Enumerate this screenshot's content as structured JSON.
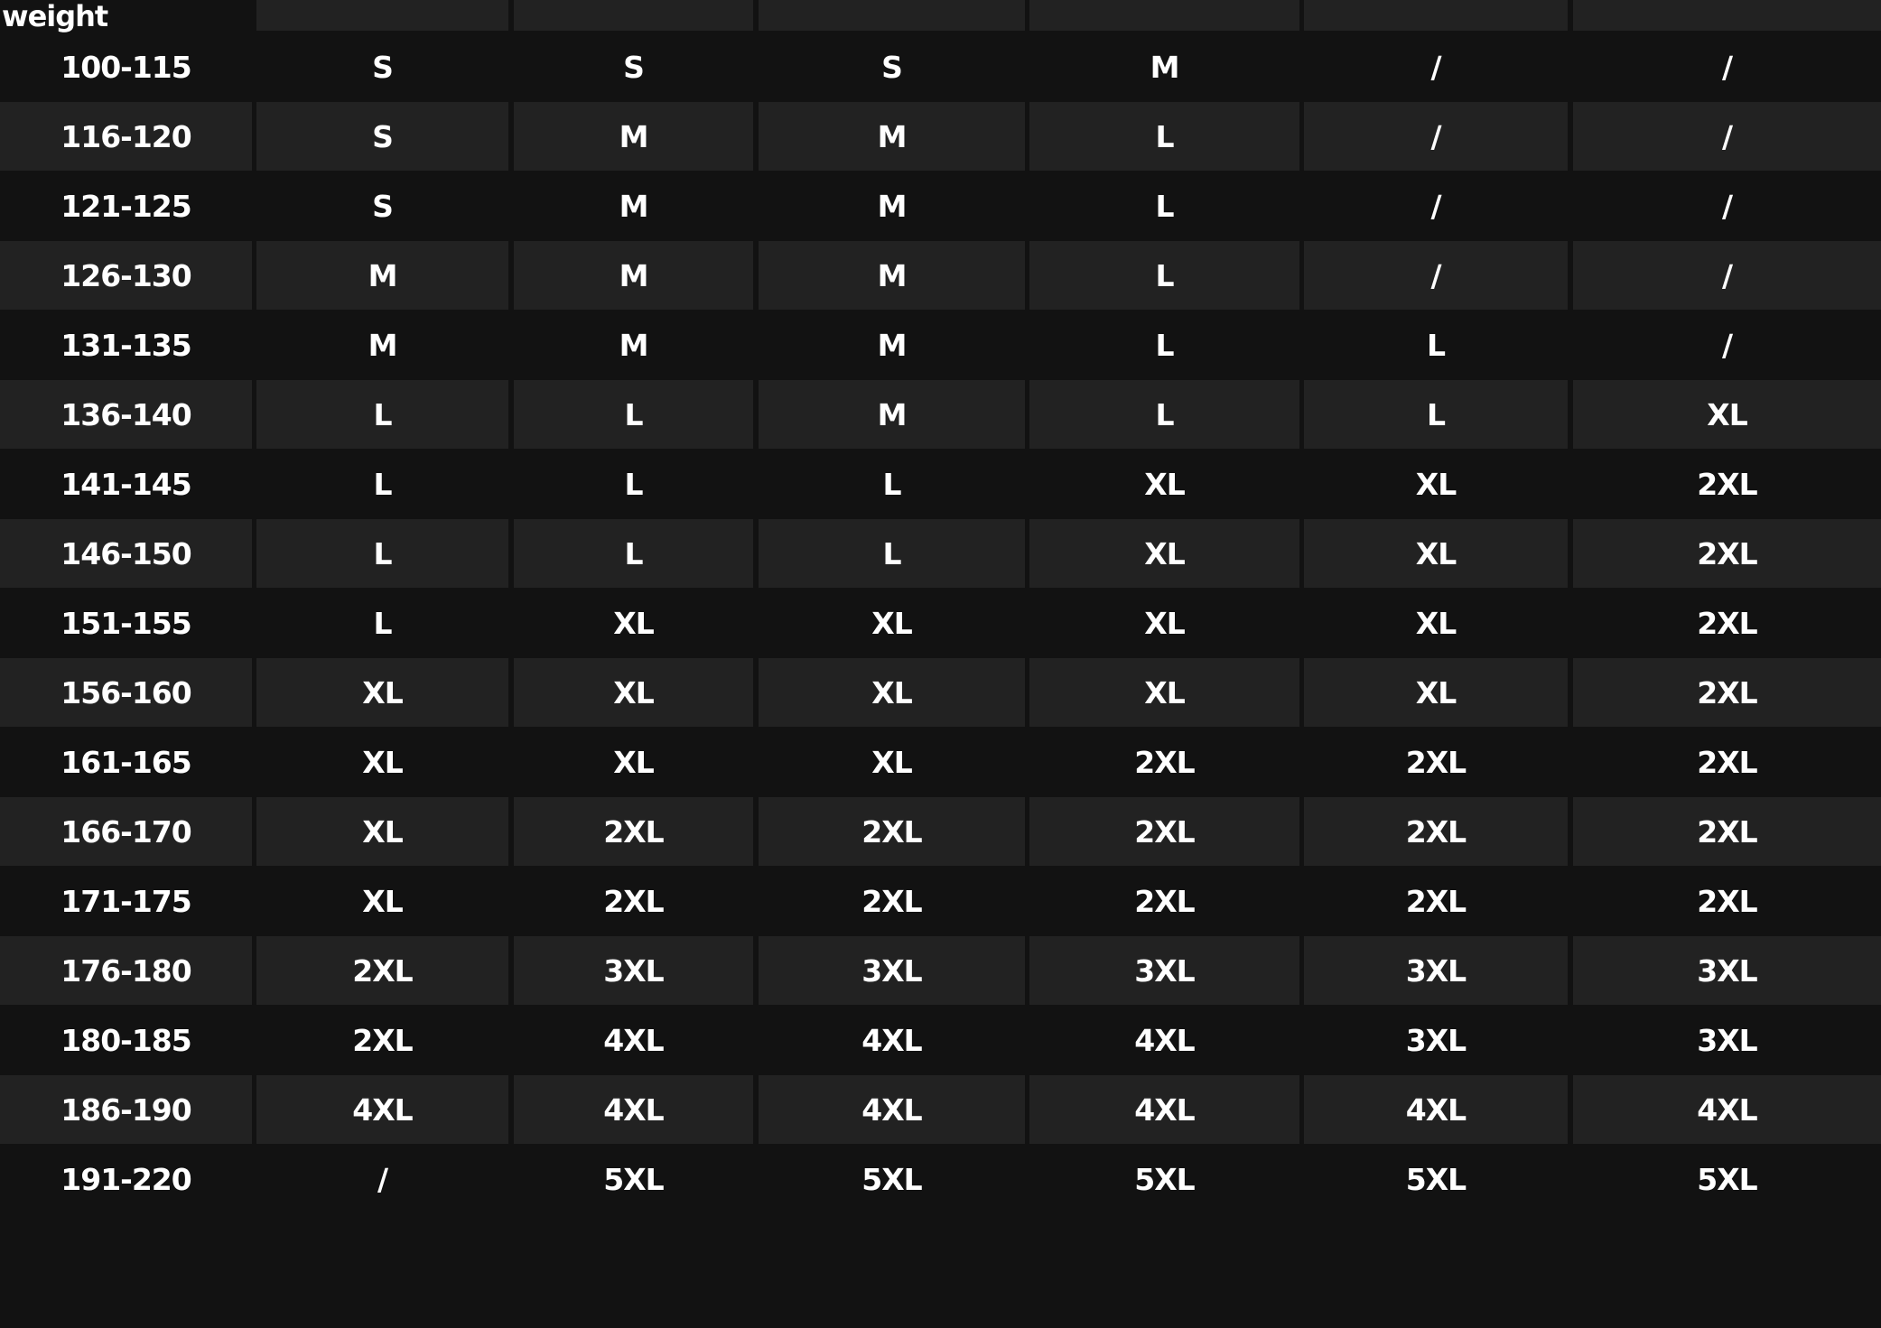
{
  "table": {
    "corner_label": "weight",
    "rows": [
      [
        "100-115",
        "S",
        "S",
        "S",
        "M",
        "/",
        "/"
      ],
      [
        "116-120",
        "S",
        "M",
        "M",
        "L",
        "/",
        "/"
      ],
      [
        "121-125",
        "S",
        "M",
        "M",
        "L",
        "/",
        "/"
      ],
      [
        "126-130",
        "M",
        "M",
        "M",
        "L",
        "/",
        "/"
      ],
      [
        "131-135",
        "M",
        "M",
        "M",
        "L",
        "L",
        "/"
      ],
      [
        "136-140",
        "L",
        "L",
        "M",
        "L",
        "L",
        "XL"
      ],
      [
        "141-145",
        "L",
        "L",
        "L",
        "XL",
        "XL",
        "2XL"
      ],
      [
        "146-150",
        "L",
        "L",
        "L",
        "XL",
        "XL",
        "2XL"
      ],
      [
        "151-155",
        "L",
        "XL",
        "XL",
        "XL",
        "XL",
        "2XL"
      ],
      [
        "156-160",
        "XL",
        "XL",
        "XL",
        "XL",
        "XL",
        "2XL"
      ],
      [
        "161-165",
        "XL",
        "XL",
        "XL",
        "2XL",
        "2XL",
        "2XL"
      ],
      [
        "166-170",
        "XL",
        "2XL",
        "2XL",
        "2XL",
        "2XL",
        "2XL"
      ],
      [
        "171-175",
        "XL",
        "2XL",
        "2XL",
        "2XL",
        "2XL",
        "2XL"
      ],
      [
        "176-180",
        "2XL",
        "3XL",
        "3XL",
        "3XL",
        "3XL",
        "3XL"
      ],
      [
        "180-185",
        "2XL",
        "4XL",
        "4XL",
        "4XL",
        "3XL",
        "3XL"
      ],
      [
        "186-190",
        "4XL",
        "4XL",
        "4XL",
        "4XL",
        "4XL",
        "4XL"
      ],
      [
        "191-220",
        "/",
        "5XL",
        "5XL",
        "5XL",
        "5XL",
        "5XL"
      ]
    ]
  }
}
